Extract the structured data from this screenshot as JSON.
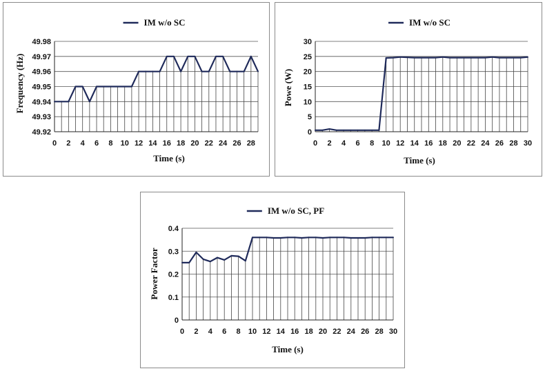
{
  "chart_data": [
    {
      "type": "line",
      "legend": "IM w/o SC",
      "legend_position": "top-center",
      "xlabel": "Time (s)",
      "ylabel": "Frequency (Hz)",
      "x": [
        0,
        1,
        2,
        3,
        4,
        5,
        6,
        7,
        8,
        9,
        10,
        11,
        12,
        13,
        14,
        15,
        16,
        17,
        18,
        19,
        20,
        21,
        22,
        23,
        24,
        25,
        26,
        27,
        28,
        29
      ],
      "xticks": [
        "0",
        "2",
        "4",
        "6",
        "8",
        "10",
        "12",
        "14",
        "16",
        "18",
        "20",
        "22",
        "24",
        "26",
        "28"
      ],
      "yticks": [
        "49.92",
        "49.93",
        "49.94",
        "49.95",
        "49.96",
        "49.97",
        "49.98"
      ],
      "ylim": [
        49.92,
        49.98
      ],
      "xlim": [
        0,
        29
      ],
      "grid": "vertical drop lines and horizontal gridlines",
      "line_color": "#1f2a5a",
      "series": [
        {
          "name": "IM w/o SC",
          "values": [
            49.94,
            49.94,
            49.94,
            49.95,
            49.95,
            49.94,
            49.95,
            49.95,
            49.95,
            49.95,
            49.95,
            49.95,
            49.96,
            49.96,
            49.96,
            49.96,
            49.97,
            49.97,
            49.96,
            49.97,
            49.97,
            49.96,
            49.96,
            49.97,
            49.97,
            49.96,
            49.96,
            49.96,
            49.97,
            49.96
          ]
        }
      ]
    },
    {
      "type": "line",
      "legend": "IM w/o SC",
      "legend_position": "top-center",
      "xlabel": "Time (s)",
      "ylabel": "Powe (W)",
      "x": [
        0,
        1,
        2,
        3,
        4,
        5,
        6,
        7,
        8,
        9,
        10,
        11,
        12,
        13,
        14,
        15,
        16,
        17,
        18,
        19,
        20,
        21,
        22,
        23,
        24,
        25,
        26,
        27,
        28,
        29,
        30
      ],
      "xticks": [
        "0",
        "2",
        "4",
        "6",
        "8",
        "10",
        "12",
        "14",
        "16",
        "18",
        "20",
        "22",
        "24",
        "26",
        "28",
        "30"
      ],
      "yticks": [
        "0",
        "5",
        "10",
        "15",
        "20",
        "25",
        "30"
      ],
      "ylim": [
        0,
        30
      ],
      "xlim": [
        0,
        30
      ],
      "grid": "vertical drop lines and horizontal gridlines",
      "line_color": "#1f2a5a",
      "series": [
        {
          "name": "IM w/o SC",
          "values": [
            0.5,
            0.5,
            0.9,
            0.5,
            0.5,
            0.5,
            0.5,
            0.5,
            0.5,
            0.5,
            24.5,
            24.6,
            24.8,
            24.7,
            24.6,
            24.6,
            24.6,
            24.6,
            24.8,
            24.6,
            24.6,
            24.6,
            24.6,
            24.6,
            24.6,
            24.8,
            24.6,
            24.6,
            24.6,
            24.6,
            24.8
          ]
        }
      ]
    },
    {
      "type": "line",
      "legend": "IM w/o SC, PF",
      "legend_position": "top-center",
      "xlabel": "Time (s)",
      "ylabel": "Power Factor",
      "x": [
        0,
        1,
        2,
        3,
        4,
        5,
        6,
        7,
        8,
        9,
        10,
        11,
        12,
        13,
        14,
        15,
        16,
        17,
        18,
        19,
        20,
        21,
        22,
        23,
        24,
        25,
        26,
        27,
        28,
        29,
        30
      ],
      "xticks": [
        "0",
        "2",
        "4",
        "6",
        "8",
        "10",
        "12",
        "14",
        "16",
        "18",
        "20",
        "22",
        "24",
        "26",
        "28",
        "30"
      ],
      "yticks": [
        "0",
        "0.1",
        "0.2",
        "0.3",
        "0.4"
      ],
      "ylim": [
        0,
        0.4
      ],
      "xlim": [
        0,
        30
      ],
      "grid": "vertical drop lines and horizontal gridlines",
      "line_color": "#1f2a5a",
      "series": [
        {
          "name": "IM w/o SC, PF",
          "values": [
            0.25,
            0.25,
            0.295,
            0.265,
            0.255,
            0.272,
            0.262,
            0.28,
            0.278,
            0.258,
            0.36,
            0.36,
            0.36,
            0.358,
            0.358,
            0.36,
            0.36,
            0.358,
            0.36,
            0.36,
            0.358,
            0.36,
            0.36,
            0.36,
            0.358,
            0.358,
            0.358,
            0.36,
            0.36,
            0.36,
            0.36
          ]
        }
      ]
    }
  ]
}
